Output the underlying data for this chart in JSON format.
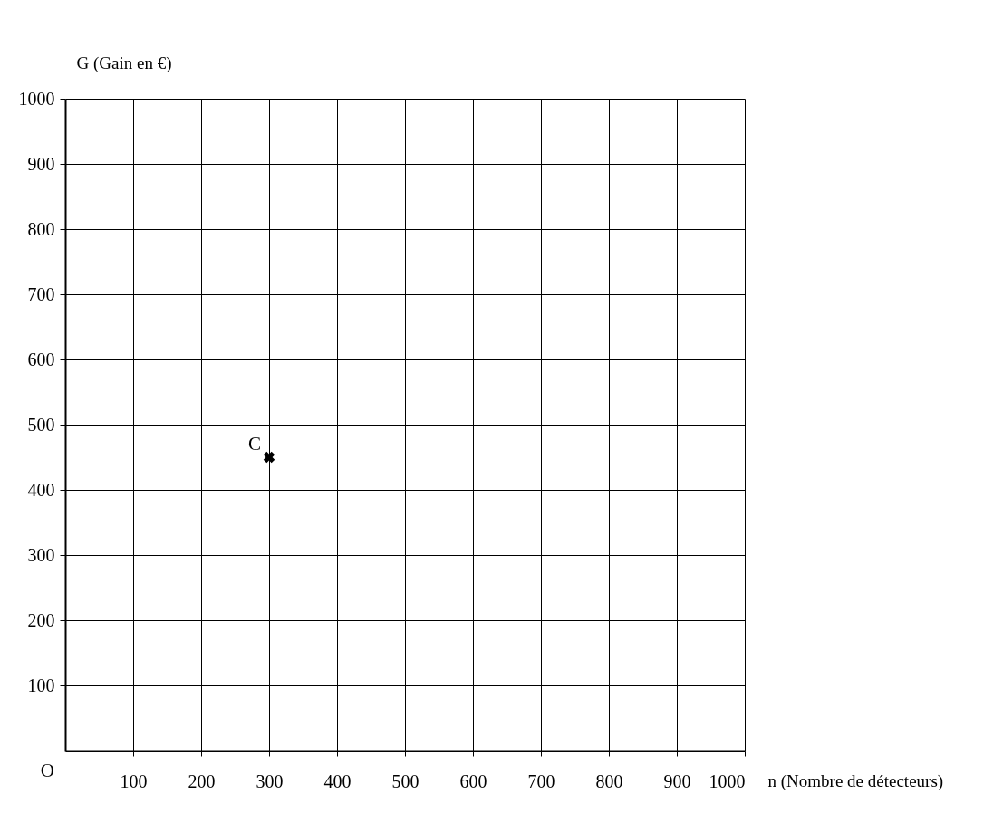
{
  "chart_data": {
    "type": "scatter",
    "xlabel": "n (Nombre de détecteurs)",
    "ylabel": "G (Gain en €)",
    "x": [
      300
    ],
    "values": [
      450
    ],
    "color": "#000000",
    "marker": "cross",
    "xlim": [
      0,
      1000
    ],
    "ylim": [
      0,
      1000
    ],
    "xticks": [
      100,
      200,
      300,
      400,
      500,
      600,
      700,
      800,
      900,
      1000
    ],
    "yticks": [
      100,
      200,
      300,
      400,
      500,
      600,
      700,
      800,
      900,
      1000
    ],
    "grid": true,
    "annotations": [
      {
        "text": "C",
        "x": 300,
        "y": 450
      },
      "O"
    ]
  }
}
